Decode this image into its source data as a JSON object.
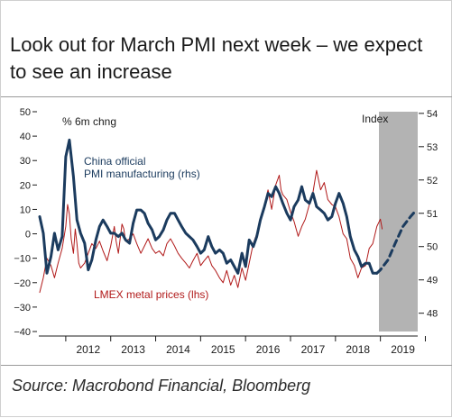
{
  "title": "Look out for March PMI next week – we expect to see an increase",
  "source": "Source: Macrobond Financial, Bloomberg",
  "chart_data": {
    "type": "line",
    "title": "Look out for March PMI next week – we expect to see an increase",
    "left_axis": {
      "label": "% 6m chng",
      "range": [
        -40,
        50
      ],
      "ticks": [
        50,
        40,
        30,
        20,
        10,
        0,
        -10,
        -20,
        -30,
        -40
      ]
    },
    "right_axis": {
      "label": "Index",
      "range": [
        47.45,
        54.05
      ],
      "ticks": [
        54,
        53,
        52,
        51,
        50,
        49,
        48
      ]
    },
    "x_axis": {
      "range": [
        2011.4,
        2019.83
      ],
      "tick_labels": [
        "2012",
        "2013",
        "2014",
        "2015",
        "2016",
        "2017",
        "2018",
        "2019"
      ]
    },
    "forecast_shading": {
      "from": 2019.0,
      "to": 2019.83
    },
    "grid": false,
    "series": [
      {
        "name": "China official PMI manufacturing (rhs)",
        "axis": "right",
        "color": "#1b3b5e",
        "points": [
          [
            2011.42,
            50.9
          ],
          [
            2011.5,
            50.4
          ],
          [
            2011.58,
            49.2
          ],
          [
            2011.67,
            49.7
          ],
          [
            2011.75,
            50.4
          ],
          [
            2011.83,
            49.9
          ],
          [
            2011.92,
            50.3
          ],
          [
            2012.0,
            52.7
          ],
          [
            2012.08,
            53.2
          ],
          [
            2012.17,
            52.1
          ],
          [
            2012.25,
            50.8
          ],
          [
            2012.33,
            50.4
          ],
          [
            2012.42,
            50.1
          ],
          [
            2012.5,
            49.3
          ],
          [
            2012.58,
            49.6
          ],
          [
            2012.67,
            50.2
          ],
          [
            2012.75,
            50.6
          ],
          [
            2012.83,
            50.8
          ],
          [
            2012.92,
            50.6
          ],
          [
            2013.0,
            50.4
          ],
          [
            2013.08,
            50.4
          ],
          [
            2013.17,
            50.3
          ],
          [
            2013.25,
            50.4
          ],
          [
            2013.33,
            50.2
          ],
          [
            2013.42,
            50.1
          ],
          [
            2013.5,
            50.7
          ],
          [
            2013.58,
            51.1
          ],
          [
            2013.67,
            51.1
          ],
          [
            2013.75,
            51.0
          ],
          [
            2013.83,
            50.7
          ],
          [
            2013.92,
            50.5
          ],
          [
            2014.0,
            50.2
          ],
          [
            2014.08,
            50.3
          ],
          [
            2014.17,
            50.5
          ],
          [
            2014.25,
            50.8
          ],
          [
            2014.33,
            51.0
          ],
          [
            2014.42,
            51.0
          ],
          [
            2014.5,
            50.8
          ],
          [
            2014.58,
            50.6
          ],
          [
            2014.67,
            50.4
          ],
          [
            2014.75,
            50.3
          ],
          [
            2014.83,
            50.2
          ],
          [
            2014.92,
            50.0
          ],
          [
            2015.0,
            49.8
          ],
          [
            2015.08,
            49.9
          ],
          [
            2015.17,
            50.3
          ],
          [
            2015.25,
            50.0
          ],
          [
            2015.33,
            49.8
          ],
          [
            2015.42,
            49.9
          ],
          [
            2015.5,
            49.8
          ],
          [
            2015.58,
            49.5
          ],
          [
            2015.67,
            49.6
          ],
          [
            2015.75,
            49.4
          ],
          [
            2015.83,
            49.2
          ],
          [
            2015.92,
            49.8
          ],
          [
            2016.0,
            49.4
          ],
          [
            2016.08,
            50.2
          ],
          [
            2016.17,
            50.0
          ],
          [
            2016.25,
            50.3
          ],
          [
            2016.33,
            50.8
          ],
          [
            2016.42,
            51.2
          ],
          [
            2016.5,
            51.6
          ],
          [
            2016.58,
            51.5
          ],
          [
            2016.67,
            51.8
          ],
          [
            2016.75,
            51.6
          ],
          [
            2016.83,
            51.3
          ],
          [
            2016.92,
            51.0
          ],
          [
            2017.0,
            50.8
          ],
          [
            2017.08,
            51.2
          ],
          [
            2017.17,
            51.4
          ],
          [
            2017.25,
            51.8
          ],
          [
            2017.33,
            51.4
          ],
          [
            2017.42,
            51.3
          ],
          [
            2017.5,
            51.6
          ],
          [
            2017.58,
            51.2
          ],
          [
            2017.67,
            51.1
          ],
          [
            2017.75,
            51.0
          ],
          [
            2017.83,
            50.8
          ],
          [
            2017.92,
            50.9
          ],
          [
            2018.0,
            51.3
          ],
          [
            2018.08,
            51.6
          ],
          [
            2018.17,
            51.3
          ],
          [
            2018.25,
            50.9
          ],
          [
            2018.33,
            50.3
          ],
          [
            2018.42,
            49.9
          ],
          [
            2018.5,
            49.7
          ],
          [
            2018.58,
            49.4
          ],
          [
            2018.67,
            49.5
          ],
          [
            2018.75,
            49.5
          ],
          [
            2018.83,
            49.2
          ],
          [
            2018.92,
            49.2
          ]
        ]
      },
      {
        "name": "LMEX metal prices (lhs)",
        "axis": "left",
        "color": "#b11a1a",
        "points": [
          [
            2011.42,
            -24
          ],
          [
            2011.5,
            -18
          ],
          [
            2011.58,
            -10
          ],
          [
            2011.67,
            -13
          ],
          [
            2011.75,
            -18
          ],
          [
            2011.83,
            -12
          ],
          [
            2011.92,
            -6
          ],
          [
            2012.0,
            3
          ],
          [
            2012.04,
            12
          ],
          [
            2012.08,
            8
          ],
          [
            2012.12,
            -2
          ],
          [
            2012.17,
            -8
          ],
          [
            2012.21,
            2
          ],
          [
            2012.25,
            -4
          ],
          [
            2012.29,
            -12
          ],
          [
            2012.33,
            -14
          ],
          [
            2012.42,
            -12
          ],
          [
            2012.5,
            -8
          ],
          [
            2012.58,
            -4
          ],
          [
            2012.67,
            -6
          ],
          [
            2012.75,
            -3
          ],
          [
            2012.83,
            -7
          ],
          [
            2012.92,
            -11
          ],
          [
            2013.0,
            -5
          ],
          [
            2013.04,
            -1
          ],
          [
            2013.08,
            3
          ],
          [
            2013.12,
            -3
          ],
          [
            2013.17,
            -8
          ],
          [
            2013.21,
            -2
          ],
          [
            2013.25,
            4
          ],
          [
            2013.29,
            2
          ],
          [
            2013.33,
            -3
          ],
          [
            2013.42,
            -2
          ],
          [
            2013.5,
            0
          ],
          [
            2013.58,
            -4
          ],
          [
            2013.67,
            -8
          ],
          [
            2013.75,
            -5
          ],
          [
            2013.83,
            -2
          ],
          [
            2013.92,
            -6
          ],
          [
            2014.0,
            -8
          ],
          [
            2014.08,
            -7
          ],
          [
            2014.17,
            -9
          ],
          [
            2014.25,
            -4
          ],
          [
            2014.33,
            -2
          ],
          [
            2014.42,
            -5
          ],
          [
            2014.5,
            -8
          ],
          [
            2014.58,
            -10
          ],
          [
            2014.67,
            -12
          ],
          [
            2014.75,
            -14
          ],
          [
            2014.83,
            -11
          ],
          [
            2014.92,
            -8
          ],
          [
            2015.0,
            -13
          ],
          [
            2015.08,
            -11
          ],
          [
            2015.17,
            -9
          ],
          [
            2015.25,
            -13
          ],
          [
            2015.33,
            -15
          ],
          [
            2015.42,
            -18
          ],
          [
            2015.5,
            -20
          ],
          [
            2015.58,
            -15
          ],
          [
            2015.67,
            -21
          ],
          [
            2015.75,
            -17
          ],
          [
            2015.83,
            -22
          ],
          [
            2015.92,
            -14
          ],
          [
            2016.0,
            -19
          ],
          [
            2016.08,
            -12
          ],
          [
            2016.17,
            -4
          ],
          [
            2016.25,
            0
          ],
          [
            2016.33,
            6
          ],
          [
            2016.42,
            12
          ],
          [
            2016.5,
            18
          ],
          [
            2016.58,
            10
          ],
          [
            2016.67,
            20
          ],
          [
            2016.75,
            24
          ],
          [
            2016.79,
            18
          ],
          [
            2016.83,
            16
          ],
          [
            2016.92,
            14
          ],
          [
            2017.0,
            9
          ],
          [
            2017.08,
            5
          ],
          [
            2017.17,
            -1
          ],
          [
            2017.25,
            3
          ],
          [
            2017.33,
            6
          ],
          [
            2017.42,
            12
          ],
          [
            2017.5,
            17
          ],
          [
            2017.58,
            26
          ],
          [
            2017.67,
            18
          ],
          [
            2017.75,
            21
          ],
          [
            2017.83,
            14
          ],
          [
            2017.92,
            12
          ],
          [
            2018.0,
            11
          ],
          [
            2018.08,
            7
          ],
          [
            2018.17,
            0
          ],
          [
            2018.25,
            -2
          ],
          [
            2018.33,
            -10
          ],
          [
            2018.42,
            -13
          ],
          [
            2018.5,
            -18
          ],
          [
            2018.58,
            -14
          ],
          [
            2018.67,
            -13
          ],
          [
            2018.75,
            -6
          ],
          [
            2018.83,
            -4
          ],
          [
            2018.92,
            3
          ],
          [
            2019.0,
            6
          ],
          [
            2019.04,
            2
          ]
        ]
      },
      {
        "name": "PMI forecast",
        "axis": "right",
        "color": "#1b3b5e",
        "dashed": true,
        "points": [
          [
            2018.92,
            49.2
          ],
          [
            2019.0,
            49.3
          ],
          [
            2019.17,
            49.6
          ],
          [
            2019.33,
            50.1
          ],
          [
            2019.5,
            50.6
          ],
          [
            2019.67,
            50.9
          ],
          [
            2019.8,
            51.1
          ]
        ]
      }
    ],
    "annotations": [
      "China official",
      "PMI manufacturing (rhs)",
      "LMEX metal prices (lhs)"
    ]
  }
}
